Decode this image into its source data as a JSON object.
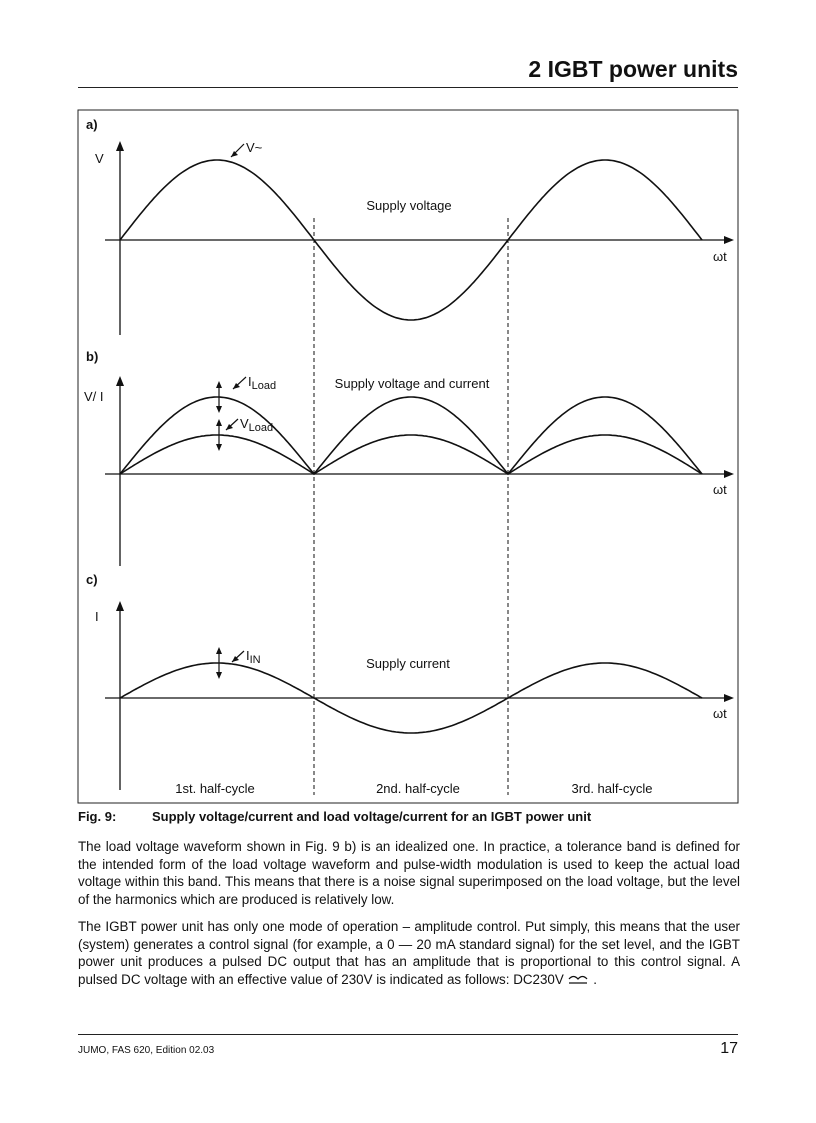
{
  "header": {
    "title": "2 IGBT power units"
  },
  "figure": {
    "panels": [
      {
        "label": "a)",
        "axis_label": "V",
        "marker": {
          "main": "V~"
        },
        "title": "Supply voltage",
        "x_axis_label": "ωt"
      },
      {
        "label": "b)",
        "axis_label": "V/ I",
        "markers": [
          {
            "main": "I",
            "sub": "Load"
          },
          {
            "main": "V",
            "sub": "Load"
          }
        ],
        "title": "Supply voltage and current",
        "x_axis_label": "ωt"
      },
      {
        "label": "c)",
        "axis_label": "I",
        "marker": {
          "main": "I",
          "sub": "IN"
        },
        "title": "Supply current",
        "x_axis_label": "ωt"
      }
    ],
    "half_cycles": [
      "1st. half-cycle",
      "2nd. half-cycle",
      "3rd. half-cycle"
    ],
    "caption": {
      "number": "Fig. 9:",
      "text": "Supply voltage/current and load voltage/current for an IGBT power unit"
    }
  },
  "paragraphs": [
    {
      "text": "The load voltage waveform shown in Fig. 9 b) is an idealized one. In practice, a tolerance band is defined for the intended form of the load voltage waveform and pulse-width modulation is used to keep the actual load voltage within this band. This means that there is a noise signal superimposed on the load voltage, but the level of the harmonics which are produced is relatively low."
    },
    {
      "text": "The IGBT power unit has only one mode of operation – amplitude control. Put simply, this means that the user (system) generates a control signal (for example, a 0 — 20 mA standard signal) for the set level, and the IGBT power unit produces a pulsed DC output that has an amplitude that is proportional to this control signal. A pulsed DC voltage with an effective value of 230V is indicated as follows: DC230V",
      "after_symbol": "."
    }
  ],
  "footer": {
    "left": "JUMO, FAS 620, Edition 02.03",
    "page": "17"
  }
}
